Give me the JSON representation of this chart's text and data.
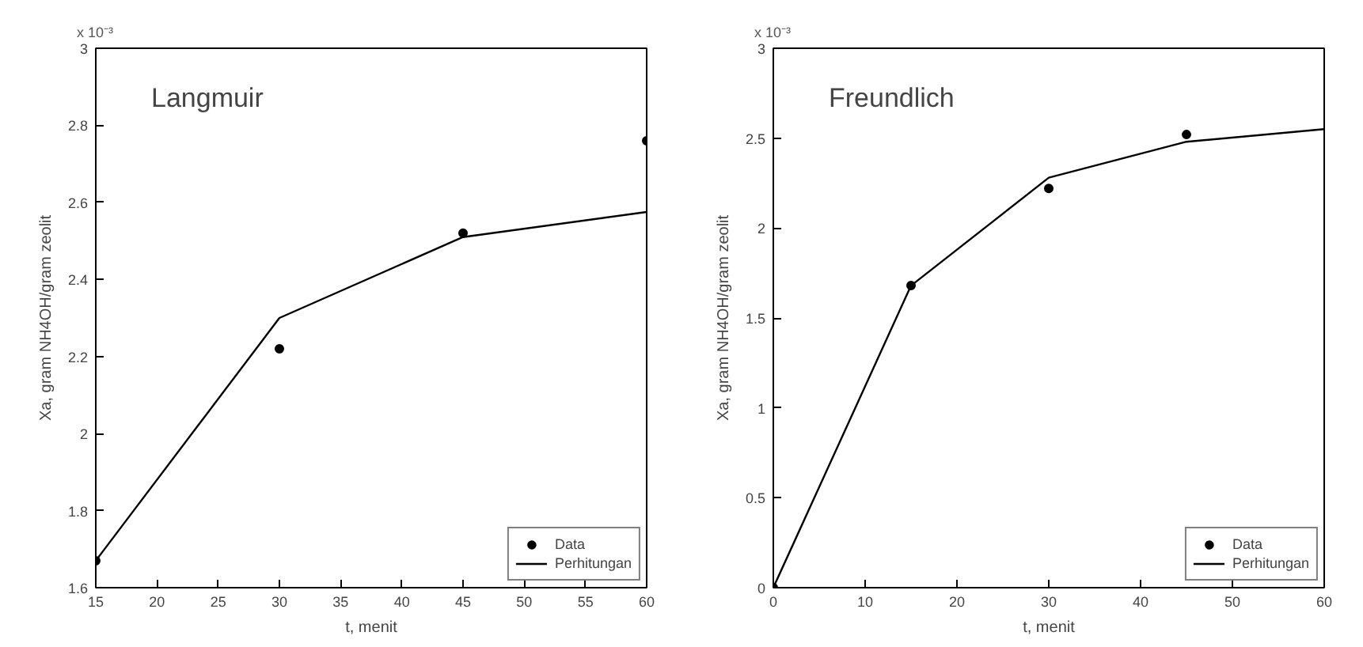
{
  "chart_data": [
    {
      "type": "line",
      "xlabel": "t, menit",
      "ylabel": "Xa, gram NH4OH/gram zeolit",
      "annotations": [
        "Langmuir",
        "x 10⁻³"
      ],
      "xlim": [
        15,
        60
      ],
      "xticks": [
        15,
        20,
        25,
        30,
        35,
        40,
        45,
        50,
        55,
        60
      ],
      "ylim": [
        1.6,
        3
      ],
      "yticks": [
        1.6,
        1.8,
        2,
        2.2,
        2.4,
        2.6,
        2.8,
        3
      ],
      "grid": false,
      "legend": "bottom right",
      "series": [
        {
          "name": "Data",
          "type": "scatter",
          "marker": "circle",
          "color": "#000000",
          "x": [
            15,
            30,
            45,
            60
          ],
          "values": [
            1.67,
            2.22,
            2.52,
            2.76
          ]
        },
        {
          "name": "Perhitungan",
          "line_style": "solid",
          "color": "#000000",
          "x": [
            15,
            30,
            45,
            60
          ],
          "values": [
            1.67,
            2.3,
            2.51,
            2.575
          ]
        }
      ]
    },
    {
      "type": "line",
      "xlabel": "t, menit",
      "ylabel": "Xa, gram NH4OH/gram zeolit",
      "annotations": [
        "Freundlich",
        "x 10⁻³"
      ],
      "xlim": [
        0,
        60
      ],
      "xticks": [
        0,
        10,
        20,
        30,
        40,
        50,
        60
      ],
      "ylim": [
        0,
        3
      ],
      "yticks": [
        0,
        0.5,
        1,
        1.5,
        2,
        2.5,
        3
      ],
      "grid": false,
      "legend": "bottom right",
      "series": [
        {
          "name": "Data",
          "type": "scatter",
          "marker": "circle",
          "color": "#000000",
          "x": [
            0,
            15,
            30,
            45
          ],
          "values": [
            0,
            1.68,
            2.22,
            2.52
          ]
        },
        {
          "name": "Perhitungan",
          "line_style": "solid",
          "color": "#000000",
          "x": [
            0,
            15,
            30,
            45,
            60
          ],
          "values": [
            0,
            1.68,
            2.28,
            2.48,
            2.55
          ]
        }
      ]
    }
  ]
}
